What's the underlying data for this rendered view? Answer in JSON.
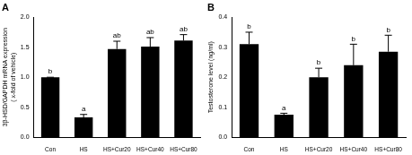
{
  "chart_data": [
    {
      "type": "bar",
      "title": "A",
      "y_label": [
        "3β-HSD/GAPDH mRNA expression",
        "( x-fold of vehicle)"
      ],
      "categories": [
        "Con",
        "HS",
        "HS+Cur20",
        "HS+Cur40",
        "HS+Cur80"
      ],
      "values": [
        1.0,
        0.33,
        1.47,
        1.51,
        1.61
      ],
      "errors": [
        0,
        0.05,
        0.13,
        0.15,
        0.1
      ],
      "annotations": [
        "b",
        "a",
        "ab",
        "ab",
        "ab"
      ],
      "color": "#000000",
      "ylim": [
        0,
        2.0
      ],
      "yticks": [
        {
          "value": 0,
          "label": "0.0"
        },
        {
          "value": 0.5,
          "label": "0.5"
        },
        {
          "value": 1.0,
          "label": "1.0"
        },
        {
          "value": 1.5,
          "label": "1.5"
        },
        {
          "value": 2.0,
          "label": "2.0"
        }
      ],
      "grid": false
    },
    {
      "type": "bar",
      "title": "B",
      "y_label": "Testosterone level (ng/ml)",
      "categories": [
        "Con",
        "HS",
        "HS+Cur20",
        "HS+Cur40",
        "HS+Cur80"
      ],
      "values": [
        0.31,
        0.075,
        0.2,
        0.24,
        0.285
      ],
      "errors": [
        0.04,
        0.005,
        0.03,
        0.07,
        0.055
      ],
      "annotations": [
        "b",
        "a",
        "b",
        "b",
        "b"
      ],
      "color": "#000000",
      "ylim": [
        0,
        0.4
      ],
      "yticks": [
        {
          "value": 0,
          "label": "0.0"
        },
        {
          "value": 0.1,
          "label": "0.1"
        },
        {
          "value": 0.2,
          "label": "0.2"
        },
        {
          "value": 0.3,
          "label": "0.3"
        },
        {
          "value": 0.4,
          "label": "0.4"
        }
      ],
      "grid": false
    }
  ]
}
